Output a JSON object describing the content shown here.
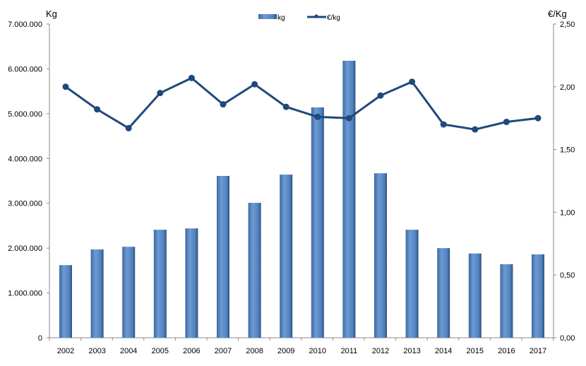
{
  "chart_data": {
    "type": "bar+line",
    "categories": [
      "2002",
      "2003",
      "2004",
      "2005",
      "2006",
      "2007",
      "2008",
      "2009",
      "2010",
      "2011",
      "2012",
      "2013",
      "2014",
      "2015",
      "2016",
      "2017"
    ],
    "series": [
      {
        "name": "kg",
        "axis": "left",
        "type": "bar",
        "color": "#4f81bd",
        "values": [
          1620000,
          1970000,
          2030000,
          2410000,
          2440000,
          3610000,
          3010000,
          3640000,
          5140000,
          6180000,
          3670000,
          2410000,
          2000000,
          1880000,
          1640000,
          1860000
        ]
      },
      {
        "name": "€/kg",
        "axis": "right",
        "type": "line",
        "color": "#1f497d",
        "values": [
          2.0,
          1.82,
          1.67,
          1.95,
          2.07,
          1.86,
          2.02,
          1.84,
          1.76,
          1.75,
          1.93,
          2.04,
          1.7,
          1.66,
          1.72,
          1.75
        ]
      }
    ],
    "ylabel": "Kg",
    "ylabel_right": "€/Kg",
    "ylim": [
      0,
      7000000
    ],
    "ylim_right": [
      0,
      2.5
    ],
    "yticks": [
      "0",
      "1.000.000",
      "2.000.000",
      "3.000.000",
      "4.000.000",
      "5.000.000",
      "6.000.000",
      "7.000.000"
    ],
    "yticks_right": [
      "0,00",
      "0,50",
      "1,00",
      "1,50",
      "2,00",
      "2,50"
    ],
    "legend_position": "top-center",
    "grid": false
  }
}
